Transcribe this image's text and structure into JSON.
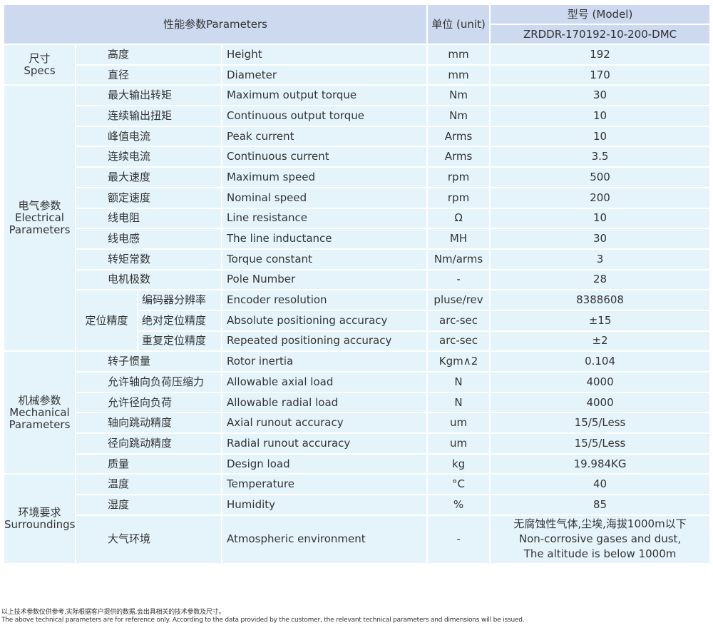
{
  "header": {
    "parameters": "性能参数Parameters",
    "unit": "单位 (unit)",
    "model_label": "型号 (Model)",
    "model": "ZRDDR-170192-10-200-DMC"
  },
  "groups": {
    "specs": {
      "cn": "尺寸",
      "en": "Specs"
    },
    "electrical": {
      "cn": "电气参数",
      "en": "Electrical Parameters"
    },
    "positioning": {
      "cn": "定位精度"
    },
    "mechanical": {
      "cn": "机械参数",
      "en": "Mechanical Parameters"
    },
    "surroundings": {
      "cn": "环境要求",
      "en": "Surroundings"
    }
  },
  "rows": [
    {
      "cn": "高度",
      "en": "Height",
      "unit": "mm",
      "value": "192"
    },
    {
      "cn": "直径",
      "en": "Diameter",
      "unit": "mm",
      "value": "170"
    },
    {
      "cn": "最大输出转矩",
      "en": "Maximum output torque",
      "unit": "Nm",
      "value": "30"
    },
    {
      "cn": "连续输出扭矩",
      "en": "Continuous output torque",
      "unit": "Nm",
      "value": "10"
    },
    {
      "cn": "峰值电流",
      "en": "Peak current",
      "unit": "Arms",
      "value": "10"
    },
    {
      "cn": "连续电流",
      "en": "Continuous current",
      "unit": "Arms",
      "value": "3.5"
    },
    {
      "cn": "最大速度",
      "en": "Maximum speed",
      "unit": "rpm",
      "value": "500"
    },
    {
      "cn": "额定速度",
      "en": "Nominal speed",
      "unit": "rpm",
      "value": "200"
    },
    {
      "cn": "线电阻",
      "en": "Line resistance",
      "unit": "Ω",
      "value": "10"
    },
    {
      "cn": "线电感",
      "en": "The line inductance",
      "unit": "MH",
      "value": "30"
    },
    {
      "cn": "转矩常数",
      "en": "Torque constant",
      "unit": "Nm/arms",
      "value": "3"
    },
    {
      "cn": "电机极数",
      "en": "Pole Number",
      "unit": "-",
      "value": "28"
    },
    {
      "cn": "编码器分辨率",
      "en": "Encoder resolution",
      "unit": "pluse/rev",
      "value": "8388608"
    },
    {
      "cn": "绝对定位精度",
      "en": "Absolute positioning accuracy",
      "unit": "arc-sec",
      "value": "±15"
    },
    {
      "cn": "重复定位精度",
      "en": "Repeated positioning accuracy",
      "unit": "arc-sec",
      "value": "±2"
    },
    {
      "cn": "转子惯量",
      "en": "Rotor inertia",
      "unit": "Kgm∧2",
      "value": "0.104"
    },
    {
      "cn": "允许轴向负荷压缩力",
      "en": "Allowable axial load",
      "unit": "N",
      "value": "4000"
    },
    {
      "cn": "允许径向负荷",
      "en": "Allowable radial load",
      "unit": "N",
      "value": "4000"
    },
    {
      "cn": "轴向跳动精度",
      "en": "Axial runout accuracy",
      "unit": "um",
      "value": "15/5/Less"
    },
    {
      "cn": "径向跳动精度",
      "en": "Radial runout accuracy",
      "unit": "um",
      "value": "15/5/Less"
    },
    {
      "cn": "质量",
      "en": "Design load",
      "unit": "kg",
      "value": "19.984KG"
    },
    {
      "cn": "温度",
      "en": "Temperature",
      "unit": "°C",
      "value": "40"
    },
    {
      "cn": "湿度",
      "en": "Humidity",
      "unit": "%",
      "value": "85"
    },
    {
      "cn": "大气环境",
      "en": "Atmospheric environment",
      "unit": "-",
      "value_lines": [
        "无腐蚀性气体,尘埃,海拔1000m以下",
        "Non-corrosive gases and dust,",
        "The altitude is below 1000m"
      ]
    }
  ],
  "notes": {
    "cn": "以上技术参数仅供参考,实际根据客户提供的数据,会出具相关的技术参数及尺寸。",
    "en": "The above technical parameters are for reference only. According to the data provided by the customer, the relevant technical parameters and dimensions will be issued."
  }
}
